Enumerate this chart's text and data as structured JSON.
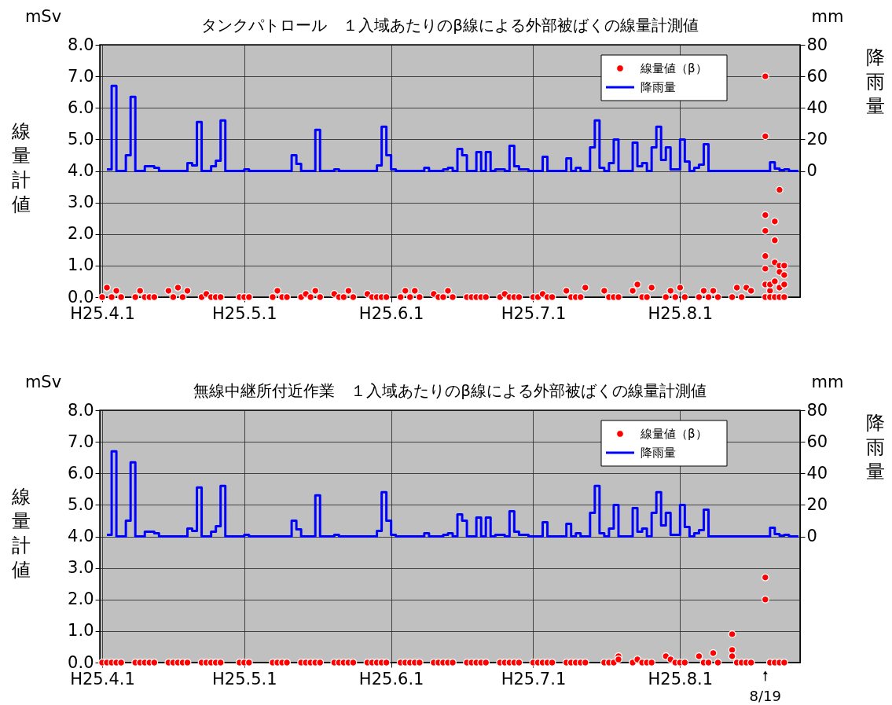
{
  "chart_data": [
    {
      "type": "scatter",
      "title": "タンクパトロール　１入域あたりのβ線による外部被ばくの線量計測値",
      "ylabel": "線量計値",
      "y2label": "降雨量",
      "annotations": [
        "mSv",
        "mm"
      ],
      "xlim": [
        "--03-31T12:00",
        "--08-26T08:00"
      ],
      "xticks": [
        {
          "value": "--04-01",
          "label": "H25.4.1"
        },
        {
          "value": "--05-01",
          "label": "H25.5.1"
        },
        {
          "value": "--06-01",
          "label": "H25.6.1"
        },
        {
          "value": "--07-01",
          "label": "H25.7.1"
        },
        {
          "value": "--08-01",
          "label": "H25.8.1"
        }
      ],
      "ylim": [
        0,
        8
      ],
      "yticks": [
        {
          "value": 0,
          "label": "0.0"
        },
        {
          "value": 1,
          "label": "1.0"
        },
        {
          "value": 2,
          "label": "2.0"
        },
        {
          "value": 3,
          "label": "3.0"
        },
        {
          "value": 4,
          "label": "4.0"
        },
        {
          "value": 5,
          "label": "5.0"
        },
        {
          "value": 6,
          "label": "6.0"
        },
        {
          "value": 7,
          "label": "7.0"
        },
        {
          "value": 8,
          "label": "8.0"
        }
      ],
      "y2lim": [
        -80,
        80
      ],
      "y2ticks": [
        0,
        20,
        40,
        60,
        80
      ],
      "grid": true,
      "legend": "top right",
      "series": [
        {
          "name": "線量値（β）",
          "color": "#ff0000",
          "x": [
            "--04-01",
            "--04-02",
            "--04-03",
            "--04-04",
            "--04-05",
            "--04-08",
            "--04-09",
            "--04-10",
            "--04-11",
            "--04-12",
            "--04-15",
            "--04-16",
            "--04-17",
            "--04-18",
            "--04-19",
            "--04-22",
            "--04-23",
            "--04-24",
            "--04-25",
            "--04-26",
            "--04-30",
            "--05-01",
            "--05-02",
            "--05-07",
            "--05-08",
            "--05-09",
            "--05-10",
            "--05-13",
            "--05-14",
            "--05-15",
            "--05-16",
            "--05-17",
            "--05-20",
            "--05-21",
            "--05-22",
            "--05-23",
            "--05-24",
            "--05-27",
            "--05-28",
            "--05-29",
            "--05-30",
            "--05-31",
            "--06-03",
            "--06-04",
            "--06-05",
            "--06-06",
            "--06-07",
            "--06-10",
            "--06-11",
            "--06-12",
            "--06-13",
            "--06-14",
            "--06-17",
            "--06-18",
            "--06-19",
            "--06-20",
            "--06-21",
            "--06-24",
            "--06-25",
            "--06-26",
            "--06-27",
            "--06-28",
            "--07-01",
            "--07-02",
            "--07-03",
            "--07-04",
            "--07-05",
            "--07-08",
            "--07-09",
            "--07-10",
            "--07-11",
            "--07-12",
            "--07-16",
            "--07-17",
            "--07-18",
            "--07-19",
            "--07-22",
            "--07-23",
            "--07-24",
            "--07-25",
            "--07-26",
            "--07-29",
            "--07-30",
            "--07-31",
            "--08-01",
            "--08-02",
            "--08-05",
            "--08-06",
            "--08-07",
            "--08-08",
            "--08-09",
            "--08-12",
            "--08-13",
            "--08-14",
            "--08-15",
            "--08-16",
            "--08-19",
            "--08-19",
            "--08-19",
            "--08-19",
            "--08-19",
            "--08-19",
            "--08-19",
            "--08-19",
            "--08-20",
            "--08-20",
            "--08-20",
            "--08-21",
            "--08-21",
            "--08-21",
            "--08-21",
            "--08-21",
            "--08-22",
            "--08-22",
            "--08-22",
            "--08-22",
            "--08-22",
            "--08-23",
            "--08-23",
            "--08-23",
            "--08-23"
          ],
          "values": [
            0,
            0.3,
            0,
            0.2,
            0,
            0,
            0.2,
            0,
            0,
            0,
            0.2,
            0,
            0.3,
            0,
            0.2,
            0,
            0.1,
            0,
            0,
            0,
            0,
            0,
            0,
            0,
            0.2,
            0,
            0,
            0,
            0.1,
            0,
            0.2,
            0,
            0.1,
            0,
            0,
            0.2,
            0,
            0.1,
            0,
            0,
            0,
            0,
            0,
            0.2,
            0,
            0.2,
            0,
            0.1,
            0,
            0,
            0.2,
            0,
            0,
            0,
            0,
            0,
            0,
            0,
            0.1,
            0,
            0,
            0,
            0,
            0,
            0.1,
            0,
            0,
            0.2,
            0,
            0,
            0,
            0.3,
            0.2,
            0,
            0,
            0,
            0.2,
            0.4,
            0,
            0,
            0.3,
            0,
            0.2,
            0,
            0.3,
            0,
            0,
            0.2,
            0,
            0.2,
            0,
            0,
            0.3,
            0,
            0.3,
            0.2,
            7.0,
            5.1,
            2.6,
            2.1,
            1.3,
            0.9,
            0.4,
            0,
            0.2,
            0.4,
            0,
            2.4,
            1.8,
            1.1,
            0.5,
            0,
            3.4,
            1.0,
            0.8,
            0.3,
            0,
            1.0,
            0.7,
            0.4,
            0
          ]
        },
        {
          "name": "降雨量",
          "type": "step",
          "axis": "y2",
          "color": "#0000ff",
          "x": [
            "--04-02",
            "--04-03",
            "--04-04",
            "--04-06",
            "--04-07",
            "--04-08",
            "--04-10",
            "--04-12",
            "--04-13",
            "--04-19",
            "--04-20",
            "--04-21",
            "--04-22",
            "--04-24",
            "--04-25",
            "--04-26",
            "--04-27",
            "--05-01",
            "--05-02",
            "--05-11",
            "--05-12",
            "--05-13",
            "--05-16",
            "--05-17",
            "--05-20",
            "--05-21",
            "--05-29",
            "--05-30",
            "--05-31",
            "--06-01",
            "--06-02",
            "--06-08",
            "--06-09",
            "--06-12",
            "--06-13",
            "--06-14",
            "--06-15",
            "--06-16",
            "--06-17",
            "--06-19",
            "--06-20",
            "--06-21",
            "--06-22",
            "--06-23",
            "--06-25",
            "--06-26",
            "--06-27",
            "--06-28",
            "--06-30",
            "--07-03",
            "--07-04",
            "--07-08",
            "--07-09",
            "--07-10",
            "--07-11",
            "--07-13",
            "--07-14",
            "--07-15",
            "--07-16",
            "--07-17",
            "--07-18",
            "--07-19",
            "--07-22",
            "--07-23",
            "--07-24",
            "--07-25",
            "--07-26",
            "--07-27",
            "--07-28",
            "--07-29",
            "--07-30",
            "--08-01",
            "--08-02",
            "--08-03",
            "--08-04",
            "--08-05",
            "--08-06",
            "--08-07",
            "--08-20",
            "--08-21",
            "--08-22",
            "--08-23",
            "--08-24",
            "--08-26"
          ],
          "values": [
            1,
            54,
            0,
            10,
            47,
            0,
            3,
            2,
            0,
            5,
            3.5,
            31,
            0,
            3,
            6.5,
            32,
            0,
            1,
            0,
            10,
            4.5,
            0,
            26,
            0,
            1,
            0,
            3.5,
            28,
            10,
            1,
            0,
            2,
            0,
            1,
            2,
            0,
            14,
            10,
            0,
            12,
            0,
            12,
            0,
            1,
            0,
            16,
            3,
            1,
            0,
            9,
            0,
            8,
            0,
            2,
            0,
            15,
            32,
            2,
            0,
            5,
            20,
            0,
            18,
            3,
            5,
            0,
            15,
            28,
            7,
            15,
            1,
            20,
            6,
            0,
            2,
            4,
            17,
            0,
            5.5,
            1.5,
            0.5,
            1,
            0,
            0
          ]
        }
      ]
    },
    {
      "type": "scatter",
      "title": "無線中継所付近作業　１入域あたりのβ線による外部被ばくの線量計測値",
      "ylabel": "線量計値",
      "y2label": "降雨量",
      "annotations": [
        "mSv",
        "mm",
        {
          "text": "8/19",
          "x": "--08-19",
          "y": 0
        }
      ],
      "xlim": [
        "--03-31T12:00",
        "--08-26T08:00"
      ],
      "xticks": [
        {
          "value": "--04-01",
          "label": "H25.4.1"
        },
        {
          "value": "--05-01",
          "label": "H25.5.1"
        },
        {
          "value": "--06-01",
          "label": "H25.6.1"
        },
        {
          "value": "--07-01",
          "label": "H25.7.1"
        },
        {
          "value": "--08-01",
          "label": "H25.8.1"
        }
      ],
      "ylim": [
        0,
        8
      ],
      "yticks": [
        {
          "value": 0,
          "label": "0.0"
        },
        {
          "value": 1,
          "label": "1.0"
        },
        {
          "value": 2,
          "label": "2.0"
        },
        {
          "value": 3,
          "label": "3.0"
        },
        {
          "value": 4,
          "label": "4.0"
        },
        {
          "value": 5,
          "label": "5.0"
        },
        {
          "value": 6,
          "label": "6.0"
        },
        {
          "value": 7,
          "label": "7.0"
        },
        {
          "value": 8,
          "label": "8.0"
        }
      ],
      "y2lim": [
        -80,
        80
      ],
      "y2ticks": [
        0,
        20,
        40,
        60,
        80
      ],
      "grid": true,
      "legend": "top right",
      "series": [
        {
          "name": "線量値（β）",
          "color": "#ff0000",
          "x": [
            "--04-01",
            "--04-02",
            "--04-03",
            "--04-04",
            "--04-05",
            "--04-08",
            "--04-09",
            "--04-10",
            "--04-11",
            "--04-12",
            "--04-15",
            "--04-16",
            "--04-17",
            "--04-18",
            "--04-19",
            "--04-22",
            "--04-23",
            "--04-24",
            "--04-25",
            "--04-26",
            "--04-30",
            "--05-01",
            "--05-02",
            "--05-07",
            "--05-08",
            "--05-09",
            "--05-10",
            "--05-13",
            "--05-14",
            "--05-15",
            "--05-16",
            "--05-17",
            "--05-20",
            "--05-21",
            "--05-22",
            "--05-23",
            "--05-24",
            "--05-27",
            "--05-28",
            "--05-29",
            "--05-30",
            "--05-31",
            "--06-03",
            "--06-04",
            "--06-05",
            "--06-06",
            "--06-07",
            "--06-10",
            "--06-11",
            "--06-12",
            "--06-13",
            "--06-14",
            "--06-17",
            "--06-18",
            "--06-19",
            "--06-20",
            "--06-21",
            "--06-24",
            "--06-25",
            "--06-26",
            "--06-27",
            "--06-28",
            "--07-01",
            "--07-02",
            "--07-03",
            "--07-04",
            "--07-05",
            "--07-08",
            "--07-09",
            "--07-10",
            "--07-11",
            "--07-12",
            "--07-16",
            "--07-17",
            "--07-18",
            "--07-19",
            "--07-22",
            "--07-23",
            "--07-24",
            "--07-25",
            "--07-26",
            "--07-29",
            "--07-30",
            "--07-31",
            "--08-01",
            "--08-02",
            "--08-05",
            "--08-06",
            "--08-07",
            "--08-08",
            "--08-09",
            "--08-12",
            "--08-13",
            "--08-14",
            "--08-15",
            "--08-16",
            "--07-19",
            "--08-12",
            "--08-12",
            "--08-19",
            "--08-19",
            "--08-20",
            "--08-21",
            "--08-22",
            "--08-23"
          ],
          "values": [
            0,
            0,
            0,
            0,
            0,
            0,
            0,
            0,
            0,
            0,
            0,
            0,
            0,
            0,
            0,
            0,
            0,
            0,
            0,
            0,
            0,
            0,
            0,
            0,
            0,
            0,
            0,
            0,
            0,
            0,
            0,
            0,
            0,
            0,
            0,
            0,
            0,
            0,
            0,
            0,
            0,
            0,
            0,
            0,
            0,
            0,
            0,
            0,
            0,
            0,
            0,
            0,
            0,
            0,
            0,
            0,
            0,
            0,
            0,
            0,
            0,
            0,
            0,
            0,
            0,
            0,
            0,
            0,
            0,
            0,
            0,
            0,
            0,
            0,
            0,
            0.2,
            0,
            0.1,
            0,
            0,
            0,
            0.2,
            0.1,
            0,
            0,
            0,
            0.2,
            0,
            0,
            0.3,
            0,
            0.9,
            0,
            0,
            0,
            0,
            0.1,
            0.4,
            0.2,
            2.7,
            2.0,
            0,
            0,
            0,
            0
          ]
        },
        {
          "name": "降雨量",
          "type": "step",
          "axis": "y2",
          "color": "#0000ff",
          "x": [
            "--04-02",
            "--04-03",
            "--04-04",
            "--04-06",
            "--04-07",
            "--04-08",
            "--04-10",
            "--04-12",
            "--04-13",
            "--04-19",
            "--04-20",
            "--04-21",
            "--04-22",
            "--04-24",
            "--04-25",
            "--04-26",
            "--04-27",
            "--05-01",
            "--05-02",
            "--05-11",
            "--05-12",
            "--05-13",
            "--05-16",
            "--05-17",
            "--05-20",
            "--05-21",
            "--05-29",
            "--05-30",
            "--05-31",
            "--06-01",
            "--06-02",
            "--06-08",
            "--06-09",
            "--06-12",
            "--06-13",
            "--06-14",
            "--06-15",
            "--06-16",
            "--06-17",
            "--06-19",
            "--06-20",
            "--06-21",
            "--06-22",
            "--06-23",
            "--06-25",
            "--06-26",
            "--06-27",
            "--06-28",
            "--06-30",
            "--07-03",
            "--07-04",
            "--07-08",
            "--07-09",
            "--07-10",
            "--07-11",
            "--07-13",
            "--07-14",
            "--07-15",
            "--07-16",
            "--07-17",
            "--07-18",
            "--07-19",
            "--07-22",
            "--07-23",
            "--07-24",
            "--07-25",
            "--07-26",
            "--07-27",
            "--07-28",
            "--07-29",
            "--07-30",
            "--08-01",
            "--08-02",
            "--08-03",
            "--08-04",
            "--08-05",
            "--08-06",
            "--08-07",
            "--08-20",
            "--08-21",
            "--08-22",
            "--08-23",
            "--08-24",
            "--08-26"
          ],
          "values": [
            1,
            54,
            0,
            10,
            47,
            0,
            3,
            2,
            0,
            5,
            3.5,
            31,
            0,
            3,
            6.5,
            32,
            0,
            1,
            0,
            10,
            4.5,
            0,
            26,
            0,
            1,
            0,
            3.5,
            28,
            10,
            1,
            0,
            2,
            0,
            1,
            2,
            0,
            14,
            10,
            0,
            12,
            0,
            12,
            0,
            1,
            0,
            16,
            3,
            1,
            0,
            9,
            0,
            8,
            0,
            2,
            0,
            15,
            32,
            2,
            0,
            5,
            20,
            0,
            18,
            3,
            5,
            0,
            15,
            28,
            7,
            15,
            1,
            20,
            6,
            0,
            2,
            4,
            17,
            0,
            5.5,
            1.5,
            0.5,
            1,
            0,
            0
          ]
        }
      ]
    }
  ]
}
